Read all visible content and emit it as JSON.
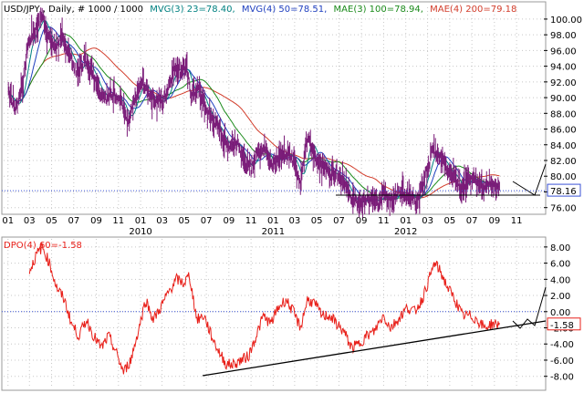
{
  "header": {
    "symbol": "USD/JPY",
    "interval": ", Daily, # 1000 / 1000",
    "mvg3": "MVG(3) 23=78.40,",
    "mvg4": "MVG(4) 50=78.51,",
    "mae3": "MAE(3) 100=78.94,",
    "mae4": "MAE(4) 200=79.18"
  },
  "colors": {
    "price_bars": "#7a1b78",
    "mvg3": "#008080",
    "mvg4": "#1f3fbf",
    "mae3": "#1a8a1a",
    "mae4": "#d23c2a",
    "dpo": "#e8201a",
    "last_price_line": "#3a52d6",
    "last_price_label_bg": "#ffffff",
    "trendline": "#000000"
  },
  "chart_data": [
    {
      "type": "line",
      "panel": "price",
      "title": "USD/JPY , Daily, # 1000 / 1000",
      "x_tick_labels": [
        "01",
        "03",
        "05",
        "07",
        "09",
        "11",
        "01",
        "03",
        "05",
        "07",
        "09",
        "11",
        "01",
        "03",
        "05",
        "07",
        "09",
        "11",
        "01",
        "03",
        "05",
        "07",
        "09",
        "11"
      ],
      "year_labels": [
        "2010",
        "2011",
        "2012"
      ],
      "y_tick_labels": [
        "76.00",
        "78.00",
        "80.00",
        "82.00",
        "84.00",
        "86.00",
        "88.00",
        "90.00",
        "92.00",
        "94.00",
        "96.00",
        "98.00",
        "100.00"
      ],
      "ylim": [
        75.5,
        101.5
      ],
      "last_price_label": "78.16",
      "grid": true,
      "series": [
        {
          "name": "USD/JPY",
          "values": [
            [
              "2009-01-02",
              91.0
            ],
            [
              "2009-01-21",
              88.5
            ],
            [
              "2009-02-10",
              91.5
            ],
            [
              "2009-02-25",
              97.0
            ],
            [
              "2009-03-15",
              98.5
            ],
            [
              "2009-04-05",
              100.5
            ],
            [
              "2009-04-20",
              98.0
            ],
            [
              "2009-05-10",
              96.5
            ],
            [
              "2009-05-30",
              97.5
            ],
            [
              "2009-06-20",
              95.5
            ],
            [
              "2009-07-10",
              93.0
            ],
            [
              "2009-07-30",
              95.0
            ],
            [
              "2009-08-20",
              93.5
            ],
            [
              "2009-09-10",
              91.0
            ],
            [
              "2009-09-30",
              90.0
            ],
            [
              "2009-10-20",
              90.5
            ],
            [
              "2009-11-10",
              89.5
            ],
            [
              "2009-11-27",
              86.5
            ],
            [
              "2009-12-15",
              89.5
            ],
            [
              "2010-01-05",
              92.0
            ],
            [
              "2010-01-25",
              90.5
            ],
            [
              "2010-02-15",
              89.5
            ],
            [
              "2010-03-05",
              89.5
            ],
            [
              "2010-03-25",
              92.5
            ],
            [
              "2010-04-05",
              94.0
            ],
            [
              "2010-04-20",
              93.5
            ],
            [
              "2010-05-05",
              94.0
            ],
            [
              "2010-05-20",
              90.5
            ],
            [
              "2010-06-10",
              91.0
            ],
            [
              "2010-06-30",
              88.5
            ],
            [
              "2010-07-20",
              87.0
            ],
            [
              "2010-08-10",
              85.5
            ],
            [
              "2010-08-25",
              84.0
            ],
            [
              "2010-09-10",
              84.0
            ],
            [
              "2010-09-25",
              84.5
            ],
            [
              "2010-10-15",
              81.5
            ],
            [
              "2010-11-01",
              81.0
            ],
            [
              "2010-11-20",
              83.5
            ],
            [
              "2010-12-10",
              83.5
            ],
            [
              "2010-12-30",
              81.5
            ],
            [
              "2011-01-20",
              82.5
            ],
            [
              "2011-02-10",
              83.0
            ],
            [
              "2011-03-01",
              82.0
            ],
            [
              "2011-03-17",
              79.0
            ],
            [
              "2011-04-06",
              85.0
            ],
            [
              "2011-04-25",
              82.5
            ],
            [
              "2011-05-15",
              81.5
            ],
            [
              "2011-06-05",
              80.5
            ],
            [
              "2011-06-25",
              80.5
            ],
            [
              "2011-07-15",
              79.5
            ],
            [
              "2011-08-01",
              77.5
            ],
            [
              "2011-08-20",
              76.5
            ],
            [
              "2011-09-10",
              77.0
            ],
            [
              "2011-09-30",
              77.0
            ],
            [
              "2011-10-20",
              76.5
            ],
            [
              "2011-10-31",
              78.5
            ],
            [
              "2011-11-20",
              77.0
            ],
            [
              "2011-12-15",
              78.0
            ],
            [
              "2012-01-10",
              77.5
            ],
            [
              "2012-01-31",
              76.5
            ],
            [
              "2012-02-20",
              79.5
            ],
            [
              "2012-03-05",
              81.5
            ],
            [
              "2012-03-15",
              83.5
            ],
            [
              "2012-04-05",
              82.5
            ],
            [
              "2012-04-25",
              81.0
            ],
            [
              "2012-05-15",
              80.0
            ],
            [
              "2012-06-01",
              78.5
            ],
            [
              "2012-06-20",
              79.5
            ],
            [
              "2012-07-10",
              79.5
            ],
            [
              "2012-07-30",
              78.5
            ],
            [
              "2012-08-20",
              79.0
            ],
            [
              "2012-09-15",
              78.16
            ]
          ]
        }
      ]
    },
    {
      "type": "line",
      "panel": "oscillator",
      "title": "DPO(4) 60=-1.58",
      "y_tick_labels": [
        "8.00",
        "6.00",
        "4.00",
        "2.00",
        "0.00",
        "-2.00",
        "-4.00",
        "-6.00",
        "-8.00"
      ],
      "ylim": [
        -9.5,
        9.0
      ],
      "last_value_label": "-1.58",
      "zero_line": 0.0,
      "grid": true,
      "series": [
        {
          "name": "DPO(4) 60",
          "values": [
            [
              "2009-03-01",
              5.0
            ],
            [
              "2009-03-20",
              7.0
            ],
            [
              "2009-04-05",
              8.0
            ],
            [
              "2009-04-25",
              6.0
            ],
            [
              "2009-05-15",
              3.0
            ],
            [
              "2009-06-05",
              1.5
            ],
            [
              "2009-06-25",
              -1.5
            ],
            [
              "2009-07-15",
              -3.0
            ],
            [
              "2009-08-05",
              -1.0
            ],
            [
              "2009-08-25",
              -3.0
            ],
            [
              "2009-09-15",
              -4.5
            ],
            [
              "2009-10-05",
              -3.0
            ],
            [
              "2009-10-25",
              -5.0
            ],
            [
              "2009-11-15",
              -7.5
            ],
            [
              "2009-12-05",
              -6.0
            ],
            [
              "2009-12-25",
              -2.5
            ],
            [
              "2010-01-15",
              1.5
            ],
            [
              "2010-02-05",
              -1.0
            ],
            [
              "2010-02-25",
              0.5
            ],
            [
              "2010-03-20",
              2.5
            ],
            [
              "2010-04-10",
              4.0
            ],
            [
              "2010-04-30",
              3.5
            ],
            [
              "2010-05-15",
              4.5
            ],
            [
              "2010-06-05",
              -1.0
            ],
            [
              "2010-06-25",
              -0.5
            ],
            [
              "2010-07-15",
              -3.0
            ],
            [
              "2010-08-05",
              -5.0
            ],
            [
              "2010-08-25",
              -6.5
            ],
            [
              "2010-09-15",
              -6.5
            ],
            [
              "2010-10-05",
              -6.0
            ],
            [
              "2010-10-25",
              -5.5
            ],
            [
              "2010-11-15",
              -3.0
            ],
            [
              "2010-12-05",
              -0.5
            ],
            [
              "2010-12-25",
              -1.5
            ],
            [
              "2011-01-15",
              0.5
            ],
            [
              "2011-02-05",
              1.5
            ],
            [
              "2011-02-25",
              0.0
            ],
            [
              "2011-03-17",
              -2.0
            ],
            [
              "2011-04-05",
              1.5
            ],
            [
              "2011-04-25",
              1.0
            ],
            [
              "2011-05-15",
              -0.5
            ],
            [
              "2011-06-05",
              -0.5
            ],
            [
              "2011-06-25",
              -1.5
            ],
            [
              "2011-07-15",
              -2.5
            ],
            [
              "2011-08-05",
              -4.5
            ],
            [
              "2011-08-25",
              -4.0
            ],
            [
              "2011-09-15",
              -3.0
            ],
            [
              "2011-10-05",
              -2.5
            ],
            [
              "2011-10-31",
              -0.5
            ],
            [
              "2011-11-20",
              -2.0
            ],
            [
              "2011-12-10",
              -1.0
            ],
            [
              "2012-01-05",
              0.5
            ],
            [
              "2012-01-25",
              0.0
            ],
            [
              "2012-02-15",
              1.5
            ],
            [
              "2012-03-05",
              4.0
            ],
            [
              "2012-03-20",
              6.0
            ],
            [
              "2012-04-05",
              5.0
            ],
            [
              "2012-04-25",
              3.0
            ],
            [
              "2012-05-15",
              1.5
            ],
            [
              "2012-06-05",
              -0.5
            ],
            [
              "2012-06-25",
              -0.5
            ],
            [
              "2012-07-15",
              -1.0
            ],
            [
              "2012-08-05",
              -2.0
            ],
            [
              "2012-08-25",
              -1.5
            ],
            [
              "2012-09-15",
              -1.58
            ]
          ]
        }
      ]
    }
  ]
}
